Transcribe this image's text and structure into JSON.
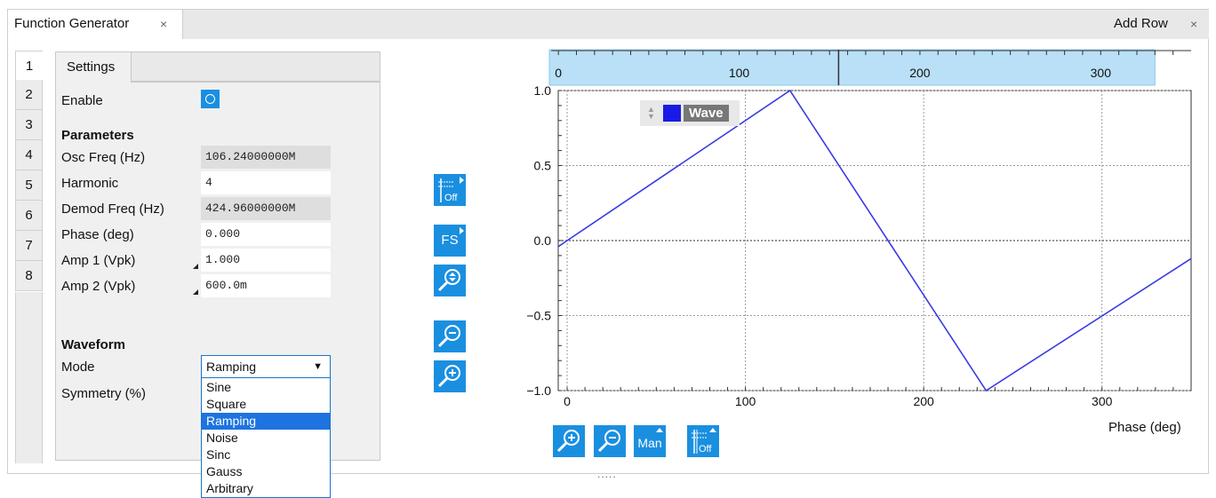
{
  "tabs": {
    "main_label": "Function Generator",
    "close_glyph": "×",
    "add_row_label": "Add Row",
    "add_row_close": "×"
  },
  "side_tabs": [
    "1",
    "2",
    "3",
    "4",
    "5",
    "6",
    "7",
    "8"
  ],
  "settings": {
    "tab_label": "Settings",
    "enable_label": "Enable",
    "enable_state": "on",
    "parameters_header": "Parameters",
    "osc_freq_label": "Osc Freq (Hz)",
    "osc_freq_value": "106.24000000M",
    "harmonic_label": "Harmonic",
    "harmonic_value": "4",
    "demod_freq_label": "Demod Freq (Hz)",
    "demod_freq_value": "424.96000000M",
    "phase_label": "Phase (deg)",
    "phase_value": "0.000",
    "amp1_label": "Amp 1 (Vpk)",
    "amp1_value": "1.000",
    "amp2_label": "Amp 2 (Vpk)",
    "amp2_value": "600.0m",
    "waveform_header": "Waveform",
    "mode_label": "Mode",
    "mode_value": "Ramping",
    "symmetry_label": "Symmetry (%)",
    "mode_options": [
      "Sine",
      "Square",
      "Ramping",
      "Noise",
      "Sinc",
      "Gauss",
      "Arbitrary"
    ],
    "mode_selected_index": 2
  },
  "toolbar": {
    "fs_label": "FS",
    "man_label": "Man",
    "off_label": "Off",
    "icons": [
      "cursor-off-icon",
      "full-scale-icon",
      "zoom-fit-icon",
      "zoom-out-icon",
      "zoom-in-icon",
      "grid-off-icon"
    ]
  },
  "chart_data": {
    "type": "line",
    "xlabel": "Phase (deg)",
    "ylabel": "",
    "xlim": [
      -5,
      350
    ],
    "ylim": [
      -1.0,
      1.0
    ],
    "x_ticks": [
      0,
      100,
      200,
      300
    ],
    "y_ticks": [
      1.0,
      0.5,
      0.0,
      -0.5,
      -1.0
    ],
    "y_tick_labels": [
      "1.0",
      "0.5",
      "0.0",
      "−0.5",
      "−1.0"
    ],
    "grid": true,
    "legend": "top-left",
    "series": [
      {
        "name": "Wave",
        "color": "#3a3ae6",
        "x": [
          -5,
          125,
          235,
          350
        ],
        "y": [
          -0.04,
          1.0,
          -1.0,
          -0.12
        ]
      }
    ],
    "overview_axis": {
      "ticks": [
        0,
        100,
        200,
        300
      ],
      "xlim": [
        -5,
        350
      ],
      "window": [
        -5,
        330
      ],
      "marker": 155
    }
  },
  "colors": {
    "accent": "#1a8fe0",
    "overview_fill": "#b9e0f7",
    "series": "#3a3ae6"
  },
  "footer": {
    "resize_handle": "....."
  }
}
